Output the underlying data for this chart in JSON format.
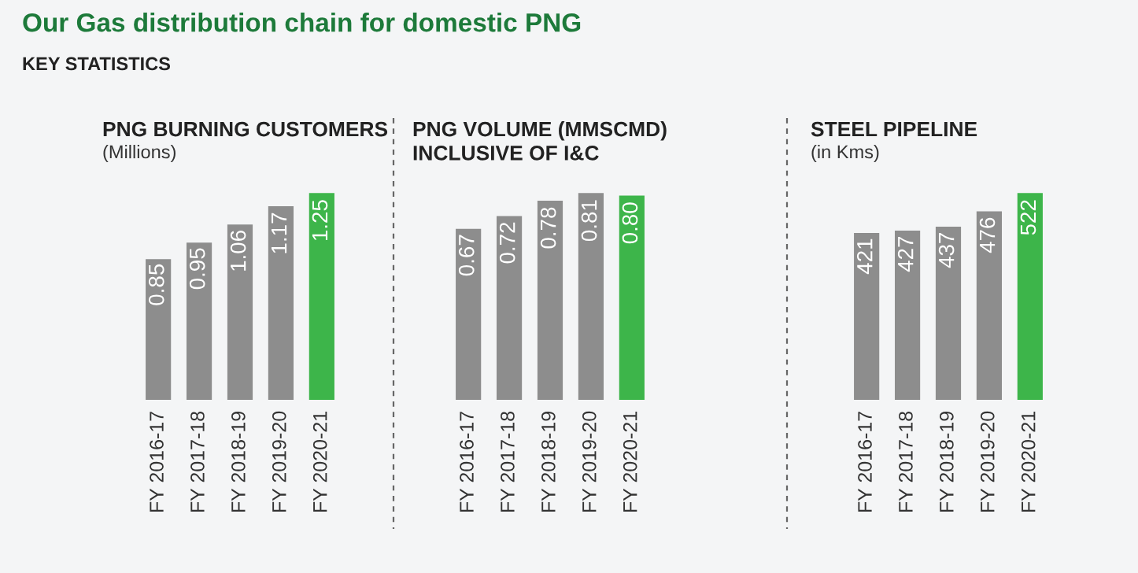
{
  "chart_data": [
    {
      "type": "bar",
      "title": "PNG BURNING CUSTOMERS",
      "subtitle": "(Millions)",
      "annotations": [
        "Our Gas distribution chain for domestic PNG",
        "KEY STATISTICS"
      ],
      "categories": [
        "FY 2016-17",
        "FY 2017-18",
        "FY 2018-19",
        "FY 2019-20",
        "FY 2020-21"
      ],
      "values": [
        0.85,
        0.95,
        1.06,
        1.17,
        1.25
      ],
      "colors": [
        "#8d8d8d",
        "#8d8d8d",
        "#8d8d8d",
        "#8d8d8d",
        "#3db54a"
      ],
      "data_labels": true,
      "value_labels": [
        "0.85",
        "0.95",
        "1.06",
        "1.17",
        "1.25"
      ],
      "grid": false,
      "legend": false
    },
    {
      "type": "bar",
      "title": "PNG VOLUME (MMSCMD)\nINCLUSIVE OF I&C",
      "categories": [
        "FY 2016-17",
        "FY 2017-18",
        "FY 2018-19",
        "FY 2019-20",
        "FY 2020-21"
      ],
      "values": [
        0.67,
        0.72,
        0.78,
        0.81,
        0.8
      ],
      "colors": [
        "#8d8d8d",
        "#8d8d8d",
        "#8d8d8d",
        "#8d8d8d",
        "#3db54a"
      ],
      "data_labels": true,
      "value_labels": [
        "0.67",
        "0.72",
        "0.78",
        "0.81",
        "0.80"
      ],
      "grid": false,
      "legend": false
    },
    {
      "type": "bar",
      "title": "STEEL PIPELINE",
      "subtitle": "(in Kms)",
      "categories": [
        "FY 2016-17",
        "FY 2017-18",
        "FY 2018-19",
        "FY 2019-20",
        "FY 2020-21"
      ],
      "values": [
        421,
        427,
        437,
        476,
        522
      ],
      "colors": [
        "#8d8d8d",
        "#8d8d8d",
        "#8d8d8d",
        "#8d8d8d",
        "#3db54a"
      ],
      "data_labels": true,
      "value_labels": [
        "421",
        "427",
        "437",
        "476",
        "522"
      ],
      "grid": false,
      "legend": false
    }
  ]
}
